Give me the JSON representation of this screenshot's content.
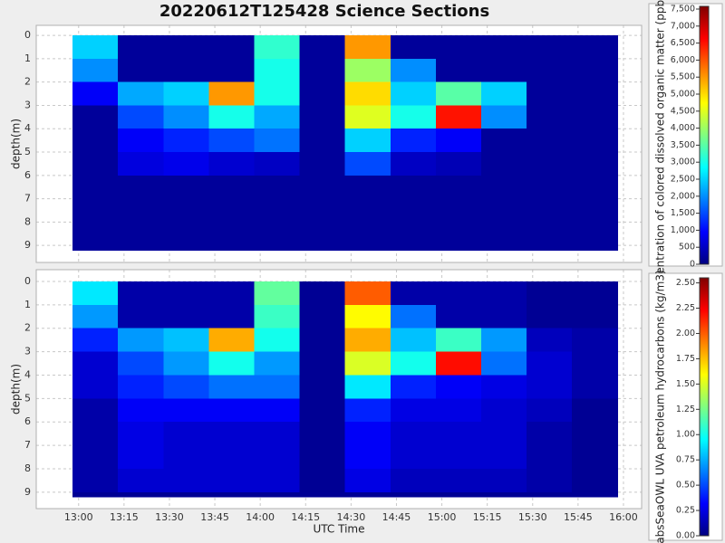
{
  "title": "20220612T125428 Science Sections",
  "chart_data": [
    {
      "type": "heatmap",
      "ylabel": "depth(m)",
      "ylim": [
        -0.43,
        9.73
      ],
      "y_inverted": true,
      "yticks": [
        0,
        1,
        2,
        3,
        4,
        5,
        6,
        7,
        8,
        9
      ],
      "x_edges": [
        "12:58",
        "13:13",
        "13:28",
        "13:43",
        "13:58",
        "14:13",
        "14:28",
        "14:43",
        "14:58",
        "15:13",
        "15:28",
        "15:43",
        "15:58"
      ],
      "depth_edges": [
        0,
        1,
        2,
        3,
        4,
        5,
        6,
        7,
        8,
        9,
        9.2
      ],
      "values": [
        [
          2500,
          200,
          200,
          200,
          3200,
          200,
          5500,
          200,
          200,
          200,
          200,
          200
        ],
        [
          2000,
          200,
          200,
          200,
          3000,
          200,
          4000,
          2000,
          200,
          200,
          200,
          200
        ],
        [
          900,
          2200,
          2500,
          5500,
          3000,
          200,
          5000,
          2500,
          3500,
          2500,
          200,
          200
        ],
        [
          200,
          1500,
          2000,
          3000,
          2200,
          200,
          4500,
          3000,
          6500,
          2000,
          200,
          200
        ],
        [
          200,
          900,
          1200,
          1500,
          1800,
          200,
          2500,
          1200,
          900,
          200,
          200,
          200
        ],
        [
          200,
          700,
          800,
          600,
          500,
          200,
          1500,
          500,
          400,
          200,
          200,
          200
        ],
        [
          200,
          200,
          200,
          200,
          200,
          200,
          200,
          200,
          200,
          200,
          200,
          200
        ],
        [
          200,
          200,
          200,
          200,
          200,
          200,
          200,
          200,
          200,
          200,
          200,
          200
        ],
        [
          200,
          200,
          200,
          200,
          200,
          200,
          200,
          200,
          200,
          200,
          200,
          200
        ],
        [
          200,
          200,
          200,
          200,
          200,
          200,
          200,
          200,
          200,
          200,
          200,
          200
        ]
      ],
      "colorbar": {
        "label": "entration of colored dissolved organic matter (ppb)",
        "colormap": "jet",
        "clim": [
          0,
          7580
        ],
        "ticks": [
          0,
          500,
          {
            "value": 1000,
            "label": "1,000"
          },
          {
            "value": 1500,
            "label": "1,500"
          },
          {
            "value": 2000,
            "label": "2,000"
          },
          {
            "value": 2500,
            "label": "2,500"
          },
          {
            "value": 3000,
            "label": "3,000"
          },
          {
            "value": 3500,
            "label": "3,500"
          },
          {
            "value": 4000,
            "label": "4,000"
          },
          {
            "value": 4500,
            "label": "4,500"
          },
          {
            "value": 5000,
            "label": "5,000"
          },
          {
            "value": 5500,
            "label": "5,500"
          },
          {
            "value": 6000,
            "label": "6,000"
          },
          {
            "value": 6500,
            "label": "6,500"
          },
          {
            "value": 7000,
            "label": "7,000"
          },
          {
            "value": 7500,
            "label": "7,500"
          }
        ]
      }
    },
    {
      "type": "heatmap",
      "ylabel": "depth(m)",
      "xlabel": "UTC Time",
      "ylim": [
        -0.5,
        9.7
      ],
      "y_inverted": true,
      "yticks": [
        0,
        1,
        2,
        3,
        4,
        5,
        6,
        7,
        8,
        9
      ],
      "xlim": [
        "12:46",
        "16:06"
      ],
      "xticks": [
        "13:00",
        "13:15",
        "13:30",
        "13:45",
        "14:00",
        "14:15",
        "14:30",
        "14:45",
        "15:00",
        "15:15",
        "15:30",
        "15:45",
        "16:00"
      ],
      "x_edges": [
        "12:58",
        "13:13",
        "13:28",
        "13:43",
        "13:58",
        "14:13",
        "14:28",
        "14:43",
        "14:58",
        "15:13",
        "15:28",
        "15:43",
        "15:58"
      ],
      "depth_edges": [
        0,
        1,
        2,
        3,
        4,
        5,
        6,
        7,
        8,
        9,
        9.2
      ],
      "values": [
        [
          0.9,
          0.1,
          0.1,
          0.1,
          1.2,
          0.05,
          2.0,
          0.1,
          0.1,
          0.1,
          0.05,
          0.05
        ],
        [
          0.7,
          0.1,
          0.1,
          0.1,
          1.1,
          0.05,
          1.6,
          0.6,
          0.1,
          0.1,
          0.05,
          0.05
        ],
        [
          0.4,
          0.7,
          0.8,
          1.8,
          1.0,
          0.05,
          1.8,
          0.8,
          1.1,
          0.7,
          0.15,
          0.1
        ],
        [
          0.2,
          0.5,
          0.7,
          1.0,
          0.7,
          0.05,
          1.5,
          1.0,
          2.2,
          0.6,
          0.2,
          0.1
        ],
        [
          0.2,
          0.4,
          0.5,
          0.6,
          0.6,
          0.05,
          0.9,
          0.4,
          0.3,
          0.25,
          0.2,
          0.1
        ],
        [
          0.1,
          0.3,
          0.3,
          0.3,
          0.3,
          0.05,
          0.4,
          0.25,
          0.25,
          0.2,
          0.15,
          0.05
        ],
        [
          0.1,
          0.25,
          0.2,
          0.2,
          0.2,
          0.05,
          0.3,
          0.2,
          0.2,
          0.2,
          0.1,
          0.05
        ],
        [
          0.1,
          0.25,
          0.2,
          0.2,
          0.2,
          0.05,
          0.3,
          0.2,
          0.2,
          0.2,
          0.1,
          0.05
        ],
        [
          0.1,
          0.2,
          0.2,
          0.2,
          0.2,
          0.05,
          0.25,
          0.15,
          0.15,
          0.15,
          0.1,
          0.05
        ],
        [
          0.05,
          0.05,
          0.05,
          0.05,
          0.05,
          0.05,
          0.05,
          0.05,
          0.05,
          0.05,
          0.05,
          0.05
        ]
      ],
      "colorbar": {
        "label": "absSeaOWL UVA petroleum hydrocarbons (kg/m3)",
        "colormap": "jet",
        "clim": [
          0,
          2.55
        ],
        "ticks": [
          {
            "value": 0,
            "label": "0.00"
          },
          0.25,
          {
            "value": 0.5,
            "label": "0.50"
          },
          0.75,
          {
            "value": 1,
            "label": "1.00"
          },
          1.25,
          {
            "value": 1.5,
            "label": "1.50"
          },
          1.75,
          {
            "value": 2,
            "label": "2.00"
          },
          2.25,
          {
            "value": 2.5,
            "label": "2.50"
          }
        ]
      }
    }
  ]
}
